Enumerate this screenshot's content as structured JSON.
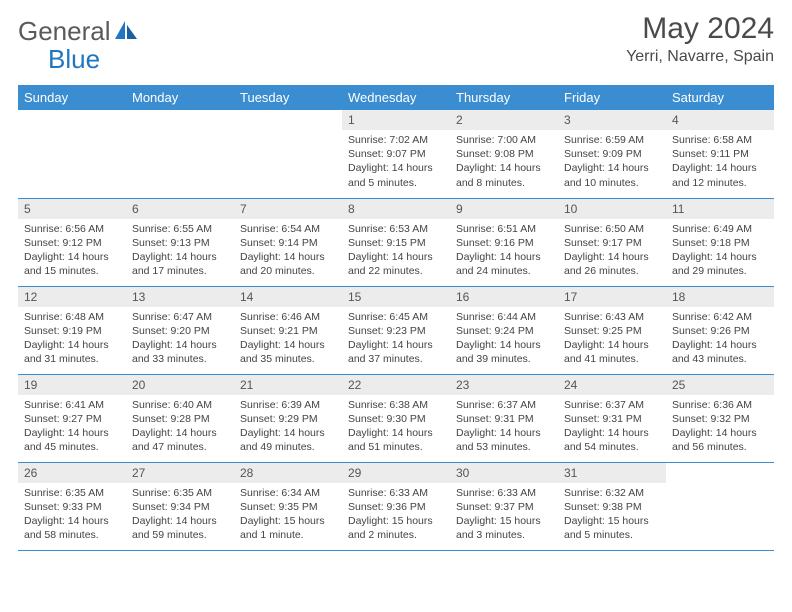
{
  "logo": {
    "part1": "General",
    "part2": "Blue"
  },
  "title": "May 2024",
  "location": "Yerri, Navarre, Spain",
  "colors": {
    "header_bg": "#3a8dd0",
    "header_text": "#ffffff",
    "daynum_bg": "#ececec",
    "border": "#3a8dd0",
    "logo_gray": "#5a5a5a",
    "logo_blue": "#2176c1"
  },
  "weekdays": [
    "Sunday",
    "Monday",
    "Tuesday",
    "Wednesday",
    "Thursday",
    "Friday",
    "Saturday"
  ],
  "weeks": [
    [
      null,
      null,
      null,
      {
        "n": "1",
        "sr": "Sunrise: 7:02 AM",
        "ss": "Sunset: 9:07 PM",
        "dl": "Daylight: 14 hours and 5 minutes."
      },
      {
        "n": "2",
        "sr": "Sunrise: 7:00 AM",
        "ss": "Sunset: 9:08 PM",
        "dl": "Daylight: 14 hours and 8 minutes."
      },
      {
        "n": "3",
        "sr": "Sunrise: 6:59 AM",
        "ss": "Sunset: 9:09 PM",
        "dl": "Daylight: 14 hours and 10 minutes."
      },
      {
        "n": "4",
        "sr": "Sunrise: 6:58 AM",
        "ss": "Sunset: 9:11 PM",
        "dl": "Daylight: 14 hours and 12 minutes."
      }
    ],
    [
      {
        "n": "5",
        "sr": "Sunrise: 6:56 AM",
        "ss": "Sunset: 9:12 PM",
        "dl": "Daylight: 14 hours and 15 minutes."
      },
      {
        "n": "6",
        "sr": "Sunrise: 6:55 AM",
        "ss": "Sunset: 9:13 PM",
        "dl": "Daylight: 14 hours and 17 minutes."
      },
      {
        "n": "7",
        "sr": "Sunrise: 6:54 AM",
        "ss": "Sunset: 9:14 PM",
        "dl": "Daylight: 14 hours and 20 minutes."
      },
      {
        "n": "8",
        "sr": "Sunrise: 6:53 AM",
        "ss": "Sunset: 9:15 PM",
        "dl": "Daylight: 14 hours and 22 minutes."
      },
      {
        "n": "9",
        "sr": "Sunrise: 6:51 AM",
        "ss": "Sunset: 9:16 PM",
        "dl": "Daylight: 14 hours and 24 minutes."
      },
      {
        "n": "10",
        "sr": "Sunrise: 6:50 AM",
        "ss": "Sunset: 9:17 PM",
        "dl": "Daylight: 14 hours and 26 minutes."
      },
      {
        "n": "11",
        "sr": "Sunrise: 6:49 AM",
        "ss": "Sunset: 9:18 PM",
        "dl": "Daylight: 14 hours and 29 minutes."
      }
    ],
    [
      {
        "n": "12",
        "sr": "Sunrise: 6:48 AM",
        "ss": "Sunset: 9:19 PM",
        "dl": "Daylight: 14 hours and 31 minutes."
      },
      {
        "n": "13",
        "sr": "Sunrise: 6:47 AM",
        "ss": "Sunset: 9:20 PM",
        "dl": "Daylight: 14 hours and 33 minutes."
      },
      {
        "n": "14",
        "sr": "Sunrise: 6:46 AM",
        "ss": "Sunset: 9:21 PM",
        "dl": "Daylight: 14 hours and 35 minutes."
      },
      {
        "n": "15",
        "sr": "Sunrise: 6:45 AM",
        "ss": "Sunset: 9:23 PM",
        "dl": "Daylight: 14 hours and 37 minutes."
      },
      {
        "n": "16",
        "sr": "Sunrise: 6:44 AM",
        "ss": "Sunset: 9:24 PM",
        "dl": "Daylight: 14 hours and 39 minutes."
      },
      {
        "n": "17",
        "sr": "Sunrise: 6:43 AM",
        "ss": "Sunset: 9:25 PM",
        "dl": "Daylight: 14 hours and 41 minutes."
      },
      {
        "n": "18",
        "sr": "Sunrise: 6:42 AM",
        "ss": "Sunset: 9:26 PM",
        "dl": "Daylight: 14 hours and 43 minutes."
      }
    ],
    [
      {
        "n": "19",
        "sr": "Sunrise: 6:41 AM",
        "ss": "Sunset: 9:27 PM",
        "dl": "Daylight: 14 hours and 45 minutes."
      },
      {
        "n": "20",
        "sr": "Sunrise: 6:40 AM",
        "ss": "Sunset: 9:28 PM",
        "dl": "Daylight: 14 hours and 47 minutes."
      },
      {
        "n": "21",
        "sr": "Sunrise: 6:39 AM",
        "ss": "Sunset: 9:29 PM",
        "dl": "Daylight: 14 hours and 49 minutes."
      },
      {
        "n": "22",
        "sr": "Sunrise: 6:38 AM",
        "ss": "Sunset: 9:30 PM",
        "dl": "Daylight: 14 hours and 51 minutes."
      },
      {
        "n": "23",
        "sr": "Sunrise: 6:37 AM",
        "ss": "Sunset: 9:31 PM",
        "dl": "Daylight: 14 hours and 53 minutes."
      },
      {
        "n": "24",
        "sr": "Sunrise: 6:37 AM",
        "ss": "Sunset: 9:31 PM",
        "dl": "Daylight: 14 hours and 54 minutes."
      },
      {
        "n": "25",
        "sr": "Sunrise: 6:36 AM",
        "ss": "Sunset: 9:32 PM",
        "dl": "Daylight: 14 hours and 56 minutes."
      }
    ],
    [
      {
        "n": "26",
        "sr": "Sunrise: 6:35 AM",
        "ss": "Sunset: 9:33 PM",
        "dl": "Daylight: 14 hours and 58 minutes."
      },
      {
        "n": "27",
        "sr": "Sunrise: 6:35 AM",
        "ss": "Sunset: 9:34 PM",
        "dl": "Daylight: 14 hours and 59 minutes."
      },
      {
        "n": "28",
        "sr": "Sunrise: 6:34 AM",
        "ss": "Sunset: 9:35 PM",
        "dl": "Daylight: 15 hours and 1 minute."
      },
      {
        "n": "29",
        "sr": "Sunrise: 6:33 AM",
        "ss": "Sunset: 9:36 PM",
        "dl": "Daylight: 15 hours and 2 minutes."
      },
      {
        "n": "30",
        "sr": "Sunrise: 6:33 AM",
        "ss": "Sunset: 9:37 PM",
        "dl": "Daylight: 15 hours and 3 minutes."
      },
      {
        "n": "31",
        "sr": "Sunrise: 6:32 AM",
        "ss": "Sunset: 9:38 PM",
        "dl": "Daylight: 15 hours and 5 minutes."
      },
      null
    ]
  ]
}
